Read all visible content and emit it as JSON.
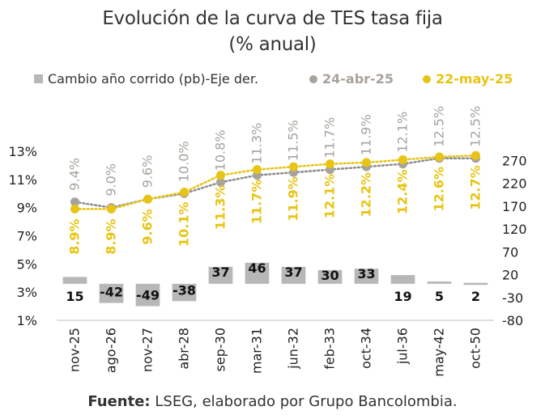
{
  "title_line1": "Evolución de la curva de TES tasa fija",
  "title_line2": "(% anual)",
  "legend": {
    "bars": "Cambio año corrido (pb)-Eje der.",
    "series1": "24-abr-25",
    "series2": "22-may-25"
  },
  "colors": {
    "bars": "#b7b7b7",
    "series1": "#a8a29c",
    "series2": "#e8c414",
    "trend1": "#8c8c8c",
    "trend2": "#e8c414"
  },
  "footer": {
    "label": "Fuente:",
    "text": "LSEG, elaborado por Grupo Bancolombia."
  },
  "chart_data": {
    "type": "bar+line",
    "categories": [
      "nov-25",
      "ago-26",
      "nov-27",
      "abr-28",
      "sep-30",
      "mar-31",
      "jun-32",
      "feb-33",
      "oct-34",
      "jul-36",
      "may-42",
      "oct-50"
    ],
    "left_axis": {
      "ticks": [
        "13%",
        "11%",
        "9%",
        "7%",
        "5%",
        "3%",
        "1%"
      ],
      "ylim": [
        1,
        13
      ]
    },
    "right_axis": {
      "ticks": [
        "270",
        "220",
        "170",
        "120",
        "70",
        "20",
        "-30",
        "-80"
      ],
      "ylim": [
        -80,
        290
      ]
    },
    "series": [
      {
        "name": "24-abr-25",
        "axis": "left",
        "values": [
          9.4,
          9.0,
          9.6,
          10.0,
          10.8,
          11.3,
          11.5,
          11.7,
          11.9,
          12.1,
          12.5,
          12.5
        ],
        "labels": [
          "9.4%",
          "9.0%",
          "9.6%",
          "10.0%",
          "10.8%",
          "11.3%",
          "11.5%",
          "11.7%",
          "11.9%",
          "12.1%",
          "12.5%",
          "12.5%"
        ]
      },
      {
        "name": "22-may-25",
        "axis": "left",
        "values": [
          8.9,
          8.9,
          9.6,
          10.1,
          11.3,
          11.7,
          11.9,
          12.1,
          12.2,
          12.4,
          12.6,
          12.7
        ],
        "labels": [
          "8.9%",
          "8.9%",
          "9.6%",
          "10.1%",
          "11.3%",
          "11.7%",
          "11.9%",
          "12.1%",
          "12.2%",
          "12.4%",
          "12.6%",
          "12.7%"
        ]
      },
      {
        "name": "Cambio año corrido (pb)-Eje der.",
        "axis": "right",
        "type": "bar",
        "values": [
          15,
          -42,
          -49,
          -38,
          37,
          46,
          37,
          30,
          33,
          19,
          5,
          2
        ],
        "labels": [
          "15",
          "-42",
          "-49",
          "-38",
          "37",
          "46",
          "37",
          "30",
          "33",
          "19",
          "5",
          "2"
        ]
      }
    ]
  }
}
